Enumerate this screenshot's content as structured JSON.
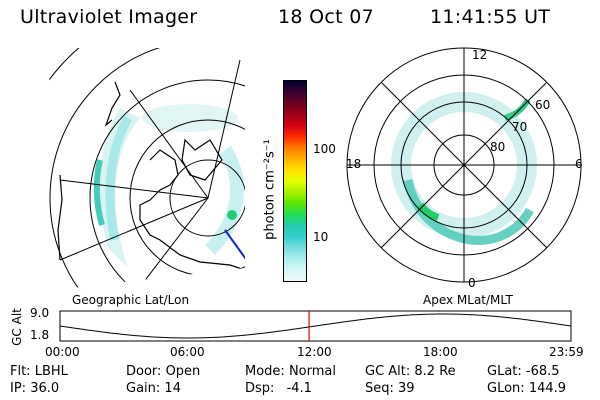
{
  "header": {
    "title": "Ultraviolet Imager",
    "date": "18 Oct 07",
    "time": "11:41:55 UT"
  },
  "colorbar": {
    "unit_label": "photon cm⁻²s⁻¹",
    "ticks": [
      "100",
      "10"
    ],
    "colors": [
      "#000033",
      "#3a0033",
      "#6a0020",
      "#a00018",
      "#d00010",
      "#ff2a00",
      "#ff7a00",
      "#ffb000",
      "#ffe000",
      "#e6ff00",
      "#a8f000",
      "#5ce600",
      "#22dd55",
      "#22ccaa",
      "#33cccc",
      "#77dddd",
      "#aaeeee",
      "#d6f6f6",
      "#eef8f8"
    ]
  },
  "left_panel": {
    "label": "Geographic Lat/Lon"
  },
  "right_panel": {
    "label": "Apex MLat/MLT",
    "mlt_labels": {
      "top": "12",
      "left": "18",
      "right": "6",
      "bottom": "0"
    },
    "lat_labels": [
      "60",
      "70",
      "80"
    ]
  },
  "altitude_plot": {
    "ylabel": "GC Alt",
    "y_ticks": [
      "9.0",
      "1.8"
    ],
    "x_ticks": [
      "00:00",
      "06:00",
      "12:00",
      "18:00",
      "23:59"
    ],
    "current_marker_hour": 11.7
  },
  "info": {
    "row1": [
      {
        "key": "Flt:",
        "value": "LBHL"
      },
      {
        "key": "Door:",
        "value": "Open"
      },
      {
        "key": "Mode:",
        "value": "Normal"
      },
      {
        "key": "GC Alt:",
        "value": "8.2 Re"
      },
      {
        "key": "GLat:",
        "value": "-68.5"
      }
    ],
    "row2": [
      {
        "key": "IP:",
        "value": "36.0"
      },
      {
        "key": "Gain:",
        "value": "14"
      },
      {
        "key": "Dsp:",
        "value": "-4.1"
      },
      {
        "key": "Seq:",
        "value": "39"
      },
      {
        "key": "GLon:",
        "value": "144.9"
      }
    ]
  }
}
